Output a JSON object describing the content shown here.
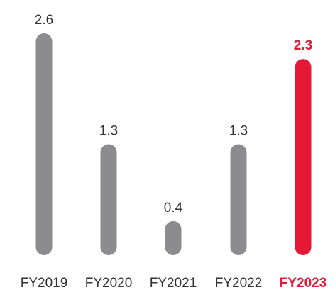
{
  "chart_data": {
    "type": "bar",
    "categories": [
      "FY2019",
      "FY2020",
      "FY2021",
      "FY2022",
      "FY2023"
    ],
    "values": [
      2.6,
      1.3,
      0.4,
      1.3,
      2.3
    ],
    "value_labels": [
      "2.6",
      "1.3",
      "0.4",
      "1.3",
      "2.3"
    ],
    "highlight_index": 4,
    "ylim": [
      0,
      2.6
    ],
    "title": "",
    "xlabel": "",
    "ylabel": "",
    "grid": false,
    "colors": {
      "default_bar": "#8c8c8e",
      "highlight_bar": "#e31937",
      "text": "#333333",
      "highlight_text": "#e31937"
    }
  }
}
